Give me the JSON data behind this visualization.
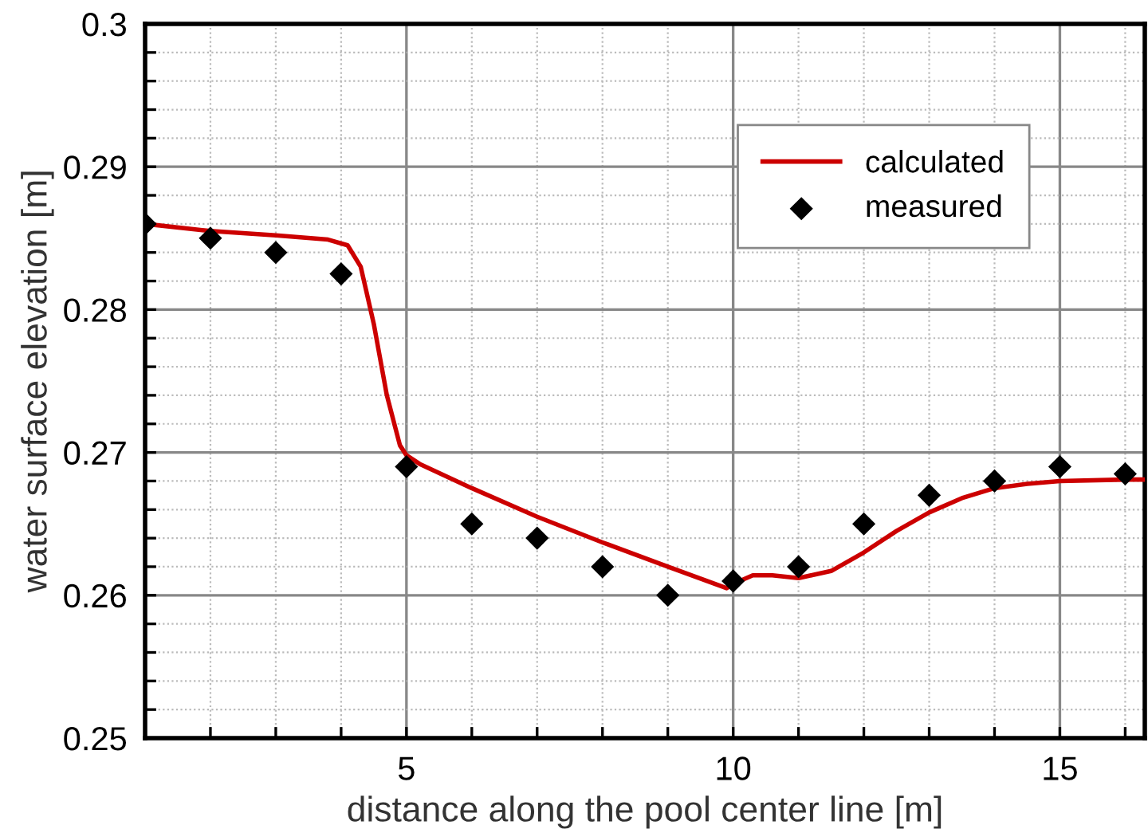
{
  "chart_data": {
    "type": "line",
    "xlabel": "distance along the pool center line [m]",
    "ylabel": "water surface elevation [m]",
    "xlim": [
      1,
      16.3
    ],
    "ylim": [
      0.25,
      0.3
    ],
    "xticks": [
      {
        "value": 1,
        "label": null
      },
      {
        "value": 2,
        "label": null
      },
      {
        "value": 3,
        "label": null
      },
      {
        "value": 4,
        "label": null
      },
      5,
      {
        "value": 6,
        "label": null
      },
      {
        "value": 7,
        "label": null
      },
      {
        "value": 8,
        "label": null
      },
      {
        "value": 9,
        "label": null
      },
      10,
      {
        "value": 11,
        "label": null
      },
      {
        "value": 12,
        "label": null
      },
      {
        "value": 13,
        "label": null
      },
      {
        "value": 14,
        "label": null
      },
      15,
      {
        "value": 16,
        "label": null
      }
    ],
    "yticks": [
      0.25,
      {
        "value": 0.252,
        "label": null
      },
      {
        "value": 0.254,
        "label": null
      },
      {
        "value": 0.256,
        "label": null
      },
      {
        "value": 0.258,
        "label": null
      },
      0.26,
      {
        "value": 0.262,
        "label": null
      },
      {
        "value": 0.264,
        "label": null
      },
      {
        "value": 0.266,
        "label": null
      },
      {
        "value": 0.268,
        "label": null
      },
      0.27,
      {
        "value": 0.272,
        "label": null
      },
      {
        "value": 0.274,
        "label": null
      },
      {
        "value": 0.276,
        "label": null
      },
      {
        "value": 0.278,
        "label": null
      },
      0.28,
      {
        "value": 0.282,
        "label": null
      },
      {
        "value": 0.284,
        "label": null
      },
      {
        "value": 0.286,
        "label": null
      },
      {
        "value": 0.288,
        "label": null
      },
      0.29,
      {
        "value": 0.292,
        "label": null
      },
      {
        "value": 0.294,
        "label": null
      },
      {
        "value": 0.296,
        "label": null
      },
      {
        "value": 0.298,
        "label": null
      },
      0.3
    ],
    "grid": true,
    "legend": "top right",
    "series": [
      {
        "name": "calculated",
        "color": "#cc0000",
        "marker": "none",
        "x": [
          1,
          2,
          3,
          3.8,
          4.1,
          4.3,
          4.5,
          4.7,
          4.9,
          5.0,
          5.2,
          6,
          7,
          8,
          9,
          9.9,
          10,
          10.3,
          10.6,
          11,
          11.5,
          12,
          12.5,
          13,
          13.5,
          14,
          14.5,
          15,
          16,
          16.3
        ],
        "values": [
          0.286,
          0.2855,
          0.2852,
          0.2849,
          0.2845,
          0.283,
          0.279,
          0.274,
          0.2705,
          0.2698,
          0.2692,
          0.2675,
          0.2655,
          0.2637,
          0.262,
          0.2605,
          0.2608,
          0.2614,
          0.2614,
          0.2612,
          0.2617,
          0.263,
          0.2645,
          0.2658,
          0.2668,
          0.2675,
          0.2678,
          0.268,
          0.2681,
          0.2681
        ]
      },
      {
        "name": "measured",
        "type": "scatter",
        "color": "#000000",
        "marker": "diamond",
        "x": [
          1,
          2,
          3,
          4,
          5,
          6,
          7,
          8,
          9,
          10,
          11,
          12,
          13,
          14,
          15,
          16
        ],
        "values": [
          0.286,
          0.285,
          0.284,
          0.2825,
          0.269,
          0.265,
          0.264,
          0.262,
          0.26,
          0.261,
          0.262,
          0.265,
          0.267,
          0.268,
          0.269,
          0.2685
        ]
      }
    ]
  }
}
